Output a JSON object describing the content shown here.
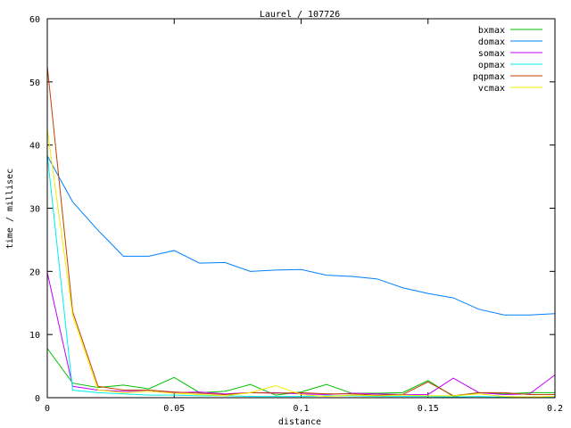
{
  "chart_data": {
    "type": "line",
    "title": "Laurel / 107726",
    "xlabel": "distance",
    "ylabel": "time / millisec",
    "xlim": [
      0,
      0.2
    ],
    "ylim": [
      0,
      60
    ],
    "xticks": [
      0,
      0.05,
      0.1,
      0.15,
      0.2
    ],
    "xtick_labels": [
      "0",
      "0.05",
      "0.1",
      "0.15",
      "0.2"
    ],
    "yticks": [
      0,
      10,
      20,
      30,
      40,
      50,
      60
    ],
    "ytick_labels": [
      "0",
      "10",
      "20",
      "30",
      "40",
      "50",
      "60"
    ],
    "grid": false,
    "legend": "top-right",
    "x": [
      0,
      0.01,
      0.02,
      0.03,
      0.04,
      0.05,
      0.06,
      0.07,
      0.08,
      0.09,
      0.1,
      0.11,
      0.12,
      0.13,
      0.14,
      0.15,
      0.16,
      0.17,
      0.18,
      0.19,
      0.2
    ],
    "series": [
      {
        "name": "bxmax",
        "color": "#00c000",
        "values": [
          7.8,
          2.3,
          1.6,
          2.0,
          1.4,
          3.2,
          0.8,
          1.0,
          2.1,
          0.4,
          0.9,
          2.1,
          0.7,
          0.7,
          0.8,
          2.7,
          0.2,
          0.8,
          0.6,
          0.8,
          0.8
        ]
      },
      {
        "name": "domax",
        "color": "#0080ff",
        "values": [
          38.3,
          31,
          26.5,
          22.4,
          22.4,
          23.3,
          21.3,
          21.4,
          20,
          20.2,
          20.3,
          19.4,
          19.2,
          18.8,
          17.4,
          16.5,
          15.8,
          14,
          13.1,
          13.1,
          13.3
        ]
      },
      {
        "name": "somax",
        "color": "#c000ff",
        "values": [
          19.8,
          1.8,
          1.2,
          1.0,
          1.0,
          0.8,
          0.9,
          0.6,
          0.8,
          0.8,
          0.6,
          0.5,
          0.7,
          0.6,
          0.5,
          0.5,
          3.1,
          0.8,
          0.5,
          0.6,
          3.6
        ]
      },
      {
        "name": "opmax",
        "color": "#00eeee",
        "values": [
          38.5,
          1.2,
          0.8,
          0.6,
          0.4,
          0.4,
          0.3,
          0.3,
          0.2,
          0.2,
          0.2,
          0.3,
          0.3,
          0.2,
          0.2,
          0.2,
          0.1,
          0.2,
          0.1,
          0.1,
          0.1
        ]
      },
      {
        "name": "pqpmax",
        "color": "#c04000",
        "values": [
          52.5,
          13.6,
          1.8,
          1.2,
          1.2,
          0.9,
          0.7,
          0.5,
          0.8,
          0.7,
          0.8,
          0.6,
          0.6,
          0.4,
          0.5,
          2.5,
          0.3,
          0.8,
          0.8,
          0.5,
          0.5
        ]
      },
      {
        "name": "vcmax",
        "color": "#eeee00",
        "values": [
          42.5,
          13,
          1.2,
          0.8,
          1.0,
          0.7,
          0.5,
          0.3,
          0.8,
          1.9,
          0.5,
          0.2,
          0.4,
          0.3,
          0.4,
          0.3,
          0.3,
          0.6,
          0.2,
          0.1,
          0.2
        ]
      }
    ]
  }
}
